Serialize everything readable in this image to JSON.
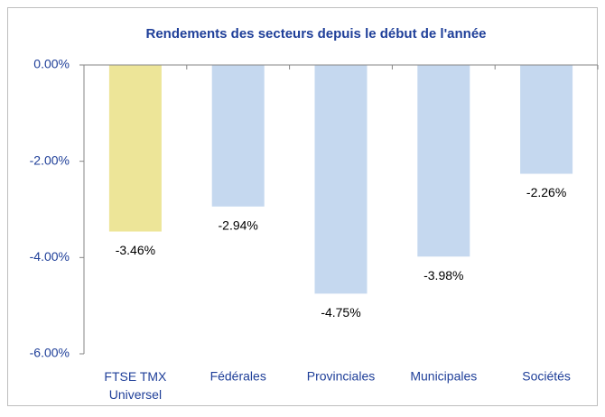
{
  "chart_data": {
    "type": "bar",
    "title": "Rendements des secteurs depuis le début de l'année",
    "categories": [
      "FTSE TMX Universel",
      "Fédérales",
      "Provinciales",
      "Municipales",
      "Sociétés"
    ],
    "values": [
      -3.46,
      -2.94,
      -4.75,
      -3.98,
      -2.26
    ],
    "value_labels": [
      "-3.46%",
      "-2.94%",
      "-4.75%",
      "-3.98%",
      "-2.26%"
    ],
    "colors": [
      "#ede598",
      "#c5d8ef",
      "#c5d8ef",
      "#c5d8ef",
      "#c5d8ef"
    ],
    "ylim": [
      -6,
      0
    ],
    "yticks": [
      {
        "value": 0,
        "label": "0.00%"
      },
      {
        "value": -2,
        "label": "-2.00%"
      },
      {
        "value": -4,
        "label": "-4.00%"
      },
      {
        "value": -6,
        "label": "-6.00%"
      }
    ],
    "grid": false
  }
}
